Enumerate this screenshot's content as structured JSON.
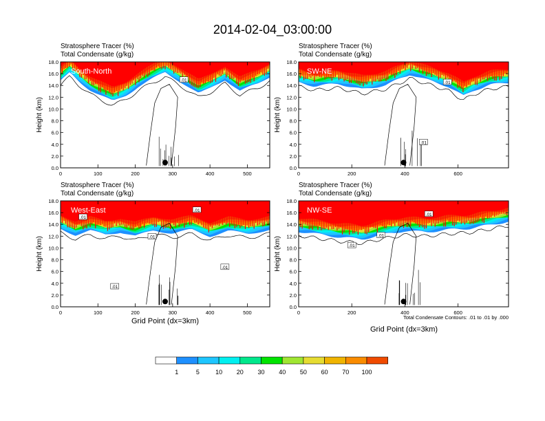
{
  "title": "2014-02-04_03:00:00",
  "chart_data": [
    {
      "type": "heatmap",
      "cross_section": "South-North",
      "label_line1": "Stratosphere Tracer   (%)",
      "label_line2": "Total Condensate   (g/kg)",
      "ylabel": "Height (km)",
      "xlabel": "",
      "xlim": [
        0,
        560
      ],
      "ylim": [
        0,
        18
      ],
      "xticks": [
        0,
        100,
        200,
        300,
        400,
        500
      ],
      "yticks": [
        0,
        2,
        4,
        6,
        8,
        10,
        12,
        14,
        16,
        18
      ],
      "surface_marker_x": 280,
      "contour_labels": [
        {
          "text": ".01",
          "x": 330,
          "y": 15.0
        }
      ],
      "tracer_base": [
        [
          0,
          14.0
        ],
        [
          25,
          15.5
        ],
        [
          50,
          14.0
        ],
        [
          80,
          12.5
        ],
        [
          100,
          11.8
        ],
        [
          140,
          10.6
        ],
        [
          175,
          11.6
        ],
        [
          210,
          13.2
        ],
        [
          245,
          14.4
        ],
        [
          280,
          15.5
        ],
        [
          330,
          13.6
        ],
        [
          370,
          11.9
        ],
        [
          400,
          12.8
        ],
        [
          440,
          14.3
        ],
        [
          480,
          12.4
        ],
        [
          530,
          13.6
        ],
        [
          560,
          14.8
        ]
      ]
    },
    {
      "type": "heatmap",
      "cross_section": "SW-NE",
      "label_line1": "Stratosphere Tracer   (%)",
      "label_line2": "Total Condensate   (g/kg)",
      "ylabel": "Height (km)",
      "xlabel": "",
      "xlim": [
        0,
        790
      ],
      "ylim": [
        0,
        18
      ],
      "xticks": [
        0,
        200,
        400,
        600
      ],
      "yticks": [
        0,
        2,
        4,
        6,
        8,
        10,
        12,
        14,
        16,
        18
      ],
      "surface_marker_x": 395,
      "contour_labels": [
        {
          "text": ".01",
          "x": 470,
          "y": 4.4
        },
        {
          "text": ".01",
          "x": 560,
          "y": 14.6
        }
      ],
      "tracer_base": [
        [
          0,
          13.8
        ],
        [
          60,
          13.2
        ],
        [
          150,
          13.6
        ],
        [
          240,
          12.6
        ],
        [
          330,
          13.4
        ],
        [
          420,
          15.2
        ],
        [
          480,
          14.3
        ],
        [
          560,
          13.2
        ],
        [
          620,
          11.5
        ],
        [
          660,
          12.5
        ],
        [
          720,
          13.4
        ],
        [
          790,
          13.8
        ]
      ]
    },
    {
      "type": "heatmap",
      "cross_section": "West-East",
      "label_line1": "Stratosphere Tracer   (%)",
      "label_line2": "Total Condensate   (g/kg)",
      "ylabel": "Height (km)",
      "xlabel": "Grid Point (dx=3km)",
      "xlim": [
        0,
        560
      ],
      "ylim": [
        0,
        18
      ],
      "xticks": [
        0,
        100,
        200,
        300,
        400,
        500
      ],
      "yticks": [
        0,
        2,
        4,
        6,
        8,
        10,
        12,
        14,
        16,
        18
      ],
      "surface_marker_x": 280,
      "contour_labels": [
        {
          "text": ".01",
          "x": 60,
          "y": 15.3
        },
        {
          "text": ".01",
          "x": 145,
          "y": 3.5
        },
        {
          "text": ".01",
          "x": 245,
          "y": 12.0
        },
        {
          "text": ".01",
          "x": 365,
          "y": 16.5
        },
        {
          "text": ".01",
          "x": 440,
          "y": 6.8
        }
      ],
      "tracer_base": [
        [
          0,
          12.6
        ],
        [
          40,
          11.5
        ],
        [
          80,
          12.2
        ],
        [
          120,
          11.6
        ],
        [
          160,
          12.0
        ],
        [
          200,
          11.3
        ],
        [
          250,
          12.3
        ],
        [
          300,
          11.8
        ],
        [
          350,
          12.4
        ],
        [
          400,
          11.3
        ],
        [
          450,
          12.2
        ],
        [
          500,
          11.7
        ],
        [
          560,
          12.4
        ]
      ]
    },
    {
      "type": "heatmap",
      "cross_section": "NW-SE",
      "label_line1": "Stratosphere Tracer   (%)",
      "label_line2": "Total Condensate   (g/kg)",
      "ylabel": "Height (km)",
      "xlabel": "Grid Point (dx=3km)",
      "xlim": [
        0,
        790
      ],
      "ylim": [
        0,
        18
      ],
      "xticks": [
        0,
        200,
        400,
        600
      ],
      "yticks": [
        0,
        2,
        4,
        6,
        8,
        10,
        12,
        14,
        16,
        18
      ],
      "surface_marker_x": 395,
      "contour_labels": [
        {
          "text": ".01",
          "x": 200,
          "y": 10.5
        },
        {
          "text": ".01",
          "x": 310,
          "y": 12.2
        },
        {
          "text": ".01",
          "x": 490,
          "y": 15.8
        }
      ],
      "tracer_base": [
        [
          0,
          12.1
        ],
        [
          80,
          11.6
        ],
        [
          160,
          11.1
        ],
        [
          240,
          10.8
        ],
        [
          320,
          11.6
        ],
        [
          400,
          12.2
        ],
        [
          480,
          12.0
        ],
        [
          560,
          12.4
        ],
        [
          640,
          12.6
        ],
        [
          720,
          13.2
        ],
        [
          790,
          13.8
        ]
      ],
      "note": "Total Condensate Contours: .01 to .01 by .000"
    }
  ],
  "colorbar": {
    "levels": [
      "1",
      "5",
      "10",
      "20",
      "30",
      "40",
      "50",
      "60",
      "70",
      "100"
    ],
    "colors": [
      "#ffffff",
      "#1e90ff",
      "#1ec6ff",
      "#00f0f0",
      "#00e88c",
      "#00e400",
      "#a0e632",
      "#e6dc32",
      "#f0b400",
      "#fa8c00",
      "#f04b00",
      "#ff0000"
    ]
  }
}
